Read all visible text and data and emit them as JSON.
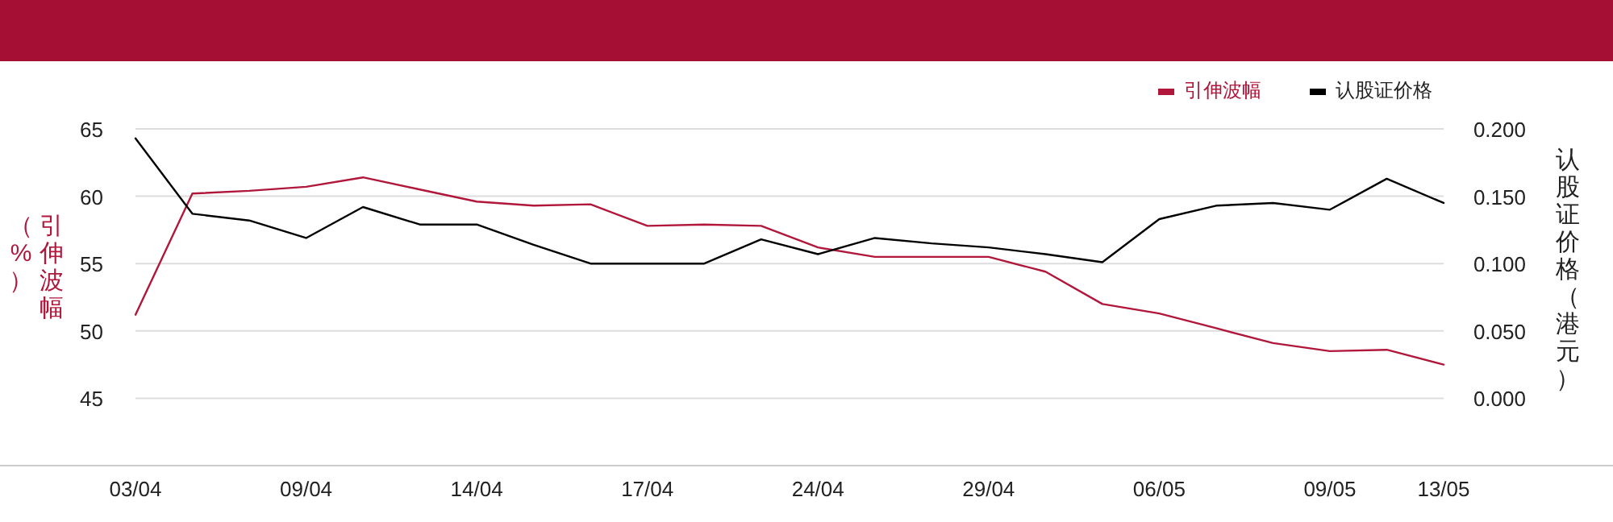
{
  "chart_data": {
    "type": "line",
    "categories": [
      "03/04",
      null,
      null,
      "09/04",
      null,
      null,
      "14/04",
      null,
      null,
      "17/04",
      null,
      null,
      "24/04",
      null,
      null,
      "29/04",
      null,
      null,
      "06/05",
      null,
      null,
      "09/05",
      null,
      "13/05"
    ],
    "series": [
      {
        "name": "引伸波幅",
        "color": "#b0173a",
        "values": [
          51.2,
          60.2,
          60.4,
          60.7,
          61.4,
          60.5,
          59.6,
          59.3,
          59.4,
          57.8,
          57.9,
          57.8,
          56.2,
          55.5,
          55.5,
          55.5,
          54.4,
          52.0,
          51.3,
          50.2,
          49.1,
          48.5,
          48.6,
          47.5
        ]
      },
      {
        "name": "认股证价格",
        "color": "#000000",
        "axis": "y2",
        "values": [
          0.193,
          0.137,
          0.132,
          0.119,
          0.142,
          0.129,
          0.129,
          0.114,
          0.1,
          0.1,
          0.1,
          0.118,
          0.107,
          0.119,
          0.115,
          0.112,
          0.107,
          0.101,
          0.133,
          0.143,
          0.145,
          0.14,
          0.163,
          0.145
        ]
      }
    ],
    "ylabel": "引伸波幅（%）",
    "y2label": "认股证价格（港元）",
    "ylim": [
      40,
      65
    ],
    "yticks": [
      45,
      50,
      55,
      60,
      65
    ],
    "y2lim": [
      -0.05,
      0.2
    ],
    "y2ticks": [
      {
        "value": 0,
        "label": "0.000"
      },
      {
        "value": 0.05,
        "label": "0.050"
      },
      {
        "value": 0.1,
        "label": "0.100"
      },
      {
        "value": 0.15,
        "label": "0.150"
      },
      {
        "value": 0.2,
        "label": "0.200"
      }
    ],
    "grid": "y",
    "legend": "top right",
    "marker": "none",
    "line_style": "solid"
  }
}
